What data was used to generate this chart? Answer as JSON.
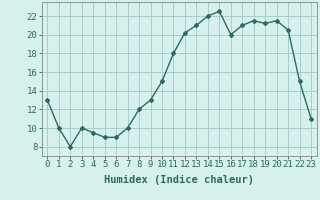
{
  "x": [
    0,
    1,
    2,
    3,
    4,
    5,
    6,
    7,
    8,
    9,
    10,
    11,
    12,
    13,
    14,
    15,
    16,
    17,
    18,
    19,
    20,
    21,
    22,
    23
  ],
  "y": [
    13,
    10,
    8,
    10,
    9.5,
    9,
    9,
    10,
    12,
    13,
    15,
    18,
    20.2,
    21,
    22,
    22.5,
    20,
    21,
    21.5,
    21.2,
    21.5,
    20.5,
    15,
    11
  ],
  "line_color": "#2d6b5e",
  "bg_color": "#d6f0ee",
  "grid_color": "#a0c8c8",
  "xlabel": "Humidex (Indice chaleur)",
  "xlim": [
    -0.5,
    23.5
  ],
  "ylim": [
    7,
    23.5
  ],
  "yticks": [
    8,
    10,
    12,
    14,
    16,
    18,
    20,
    22
  ],
  "xtick_labels": [
    "0",
    "1",
    "2",
    "3",
    "4",
    "5",
    "6",
    "7",
    "8",
    "9",
    "10",
    "11",
    "12",
    "13",
    "14",
    "15",
    "16",
    "17",
    "18",
    "19",
    "20",
    "21",
    "22",
    "23"
  ],
  "marker": "D",
  "marker_size": 2.0,
  "line_width": 1.0,
  "xlabel_fontsize": 7.5,
  "tick_fontsize": 6.5
}
